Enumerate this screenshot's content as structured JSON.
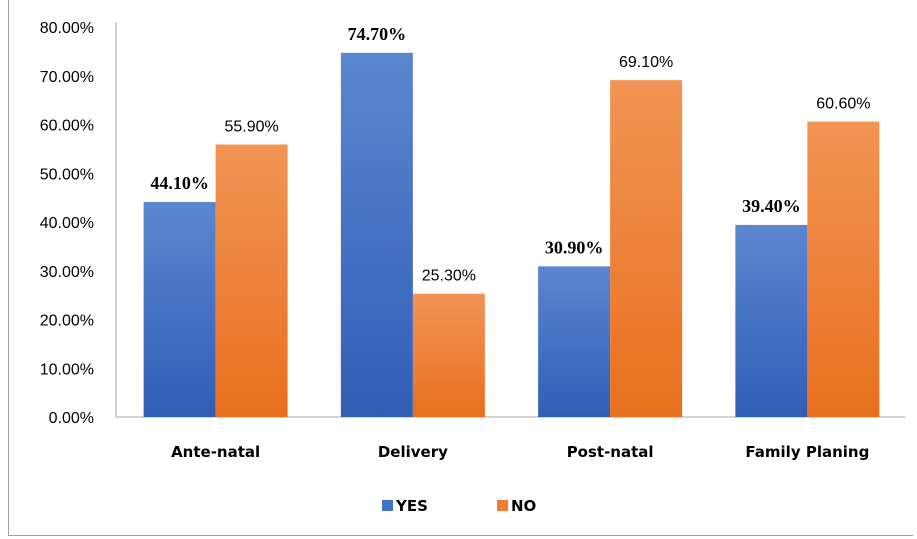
{
  "chart_data": {
    "type": "bar",
    "categories": [
      "Ante-natal",
      "Delivery",
      "Post-natal",
      "Family Planing"
    ],
    "series": [
      {
        "name": "YES",
        "values": [
          44.1,
          74.7,
          30.9,
          39.4
        ],
        "labels": [
          "44.10%",
          "74.70%",
          "30.90%",
          "39.40%"
        ]
      },
      {
        "name": "NO",
        "values": [
          55.9,
          25.3,
          69.1,
          60.6
        ],
        "labels": [
          "55.90%",
          "25.30%",
          "69.10%",
          "60.60%"
        ]
      }
    ],
    "ylim": [
      0,
      80
    ],
    "yticks": [
      "0.00%",
      "10.00%",
      "20.00%",
      "30.00%",
      "40.00%",
      "50.00%",
      "60.00%",
      "70.00%",
      "80.00%"
    ],
    "grid": false,
    "legend_position": "bottom",
    "colors": {
      "YES": "#4472c4",
      "NO": "#ed7d31"
    }
  }
}
